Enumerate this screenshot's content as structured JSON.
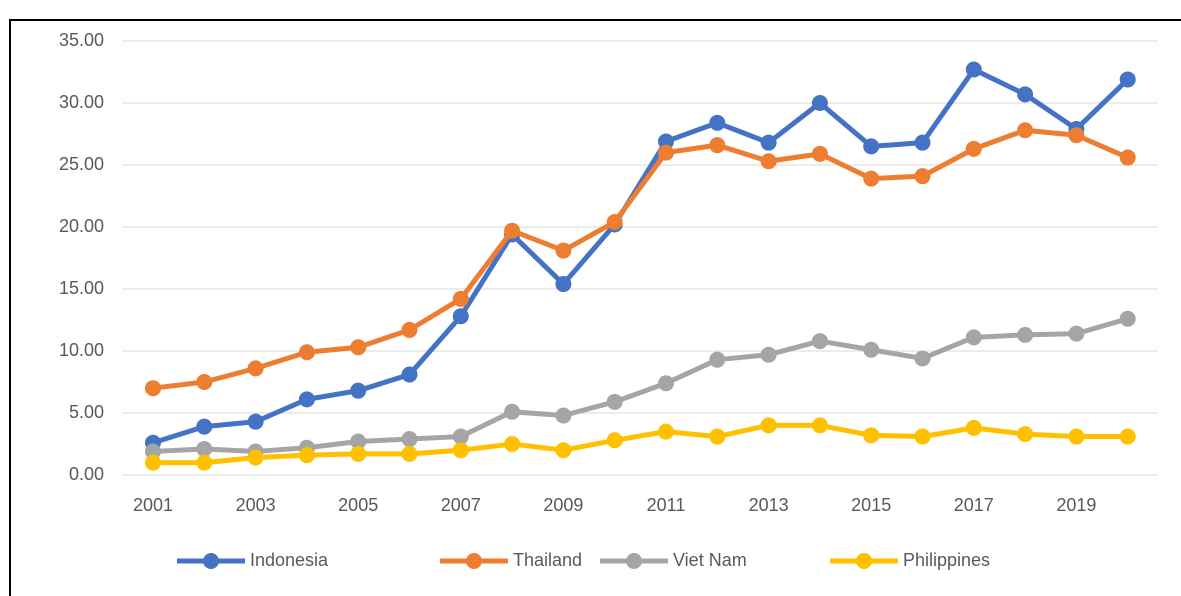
{
  "chart_data": {
    "type": "line",
    "categories": [
      "2001",
      null,
      "2003",
      null,
      "2005",
      null,
      "2007",
      null,
      "2009",
      null,
      "2011",
      null,
      "2013",
      null,
      "2015",
      null,
      "2017",
      null,
      "2019",
      null
    ],
    "series": [
      {
        "name": "Indonesia",
        "color": "#4472c4",
        "values": [
          2.6,
          3.9,
          4.3,
          6.1,
          6.8,
          8.1,
          12.8,
          19.4,
          15.4,
          20.2,
          26.9,
          28.4,
          26.8,
          30.0,
          26.5,
          26.8,
          32.7,
          30.7,
          27.9,
          31.9
        ]
      },
      {
        "name": "Thailand",
        "color": "#ed7d31",
        "values": [
          7.0,
          7.5,
          8.6,
          9.9,
          10.3,
          11.7,
          14.2,
          19.7,
          18.1,
          20.4,
          26.0,
          26.6,
          25.3,
          25.9,
          23.9,
          24.1,
          26.3,
          27.8,
          27.4,
          25.6
        ]
      },
      {
        "name": "Viet Nam",
        "color": "#a5a5a5",
        "values": [
          1.9,
          2.1,
          1.9,
          2.2,
          2.7,
          2.9,
          3.1,
          5.1,
          4.8,
          5.9,
          7.4,
          9.3,
          9.7,
          10.8,
          10.1,
          9.4,
          11.1,
          11.3,
          11.4,
          12.6
        ]
      },
      {
        "name": "Philippines",
        "color": "#ffc000",
        "values": [
          1.0,
          1.0,
          1.4,
          1.6,
          1.7,
          1.7,
          2.0,
          2.5,
          2.0,
          2.8,
          3.5,
          3.1,
          4.0,
          4.0,
          3.2,
          3.1,
          3.8,
          3.3,
          3.1,
          3.1
        ]
      }
    ],
    "ylim": [
      0,
      35
    ],
    "yticks": [
      {
        "value": 0,
        "label": "0.00"
      },
      {
        "value": 5,
        "label": "5.00"
      },
      {
        "value": 10,
        "label": "10.00"
      },
      {
        "value": 15,
        "label": "15.00"
      },
      {
        "value": 20,
        "label": "20.00"
      },
      {
        "value": 25,
        "label": "25.00"
      },
      {
        "value": 30,
        "label": "30.00"
      },
      {
        "value": 35,
        "label": "35.00"
      }
    ],
    "grid": true,
    "legend": "bottom"
  }
}
